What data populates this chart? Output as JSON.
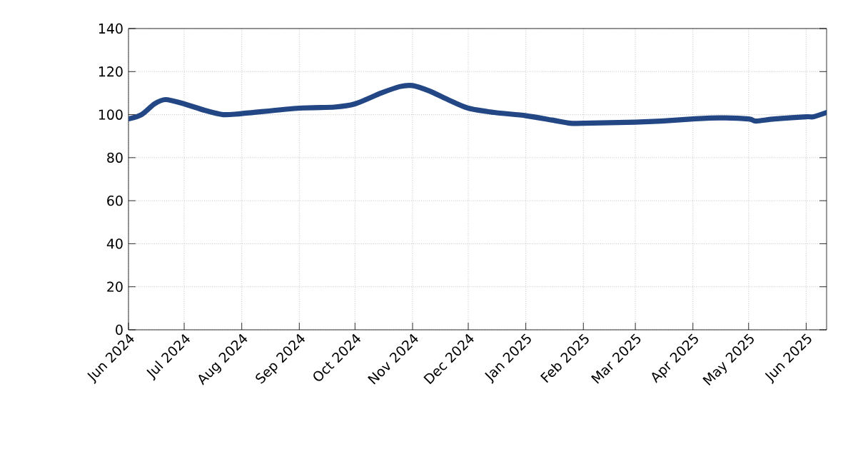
{
  "chart_data": {
    "type": "line",
    "x": [
      "2024-06-01",
      "2024-06-08",
      "2024-06-15",
      "2024-06-21",
      "2024-07-01",
      "2024-07-12",
      "2024-07-22",
      "2024-08-01",
      "2024-09-01",
      "2024-09-20",
      "2024-10-01",
      "2024-10-15",
      "2024-10-25",
      "2024-11-01",
      "2024-11-10",
      "2024-11-20",
      "2024-12-01",
      "2024-12-15",
      "2025-01-01",
      "2025-01-15",
      "2025-01-25",
      "2025-02-01",
      "2025-03-01",
      "2025-03-15",
      "2025-04-01",
      "2025-04-15",
      "2025-05-01",
      "2025-05-05",
      "2025-05-15",
      "2025-06-01",
      "2025-06-05",
      "2025-06-12"
    ],
    "series": [
      {
        "color": "#234785",
        "values": [
          98,
          100,
          105,
          107,
          105,
          102,
          100,
          100.5,
          103,
          103.5,
          105,
          110,
          113,
          113.5,
          111,
          107,
          103,
          101,
          99.5,
          97.5,
          96,
          96,
          96.5,
          97,
          98,
          98.5,
          98,
          97,
          98,
          99,
          99,
          101
        ]
      }
    ],
    "xlim": [
      "2024-06-01",
      "2025-06-12"
    ],
    "xticks": [
      {
        "value": "2024-06-01",
        "label": "Jun 2024"
      },
      {
        "value": "2024-07-01",
        "label": "Jul 2024"
      },
      {
        "value": "2024-08-01",
        "label": "Aug 2024"
      },
      {
        "value": "2024-09-01",
        "label": "Sep 2024"
      },
      {
        "value": "2024-10-01",
        "label": "Oct 2024"
      },
      {
        "value": "2024-11-01",
        "label": "Nov 2024"
      },
      {
        "value": "2024-12-01",
        "label": "Dec 2024"
      },
      {
        "value": "2025-01-01",
        "label": "Jan 2025"
      },
      {
        "value": "2025-02-01",
        "label": "Feb 2025"
      },
      {
        "value": "2025-03-01",
        "label": "Mar 2025"
      },
      {
        "value": "2025-04-01",
        "label": "Apr 2025"
      },
      {
        "value": "2025-05-01",
        "label": "May 2025"
      },
      {
        "value": "2025-06-01",
        "label": "Jun 2025"
      }
    ],
    "ylim": [
      0,
      140
    ],
    "yticks": [
      0,
      20,
      40,
      60,
      80,
      100,
      120,
      140
    ],
    "grid": true,
    "marker": "none",
    "line_style": "solid"
  }
}
